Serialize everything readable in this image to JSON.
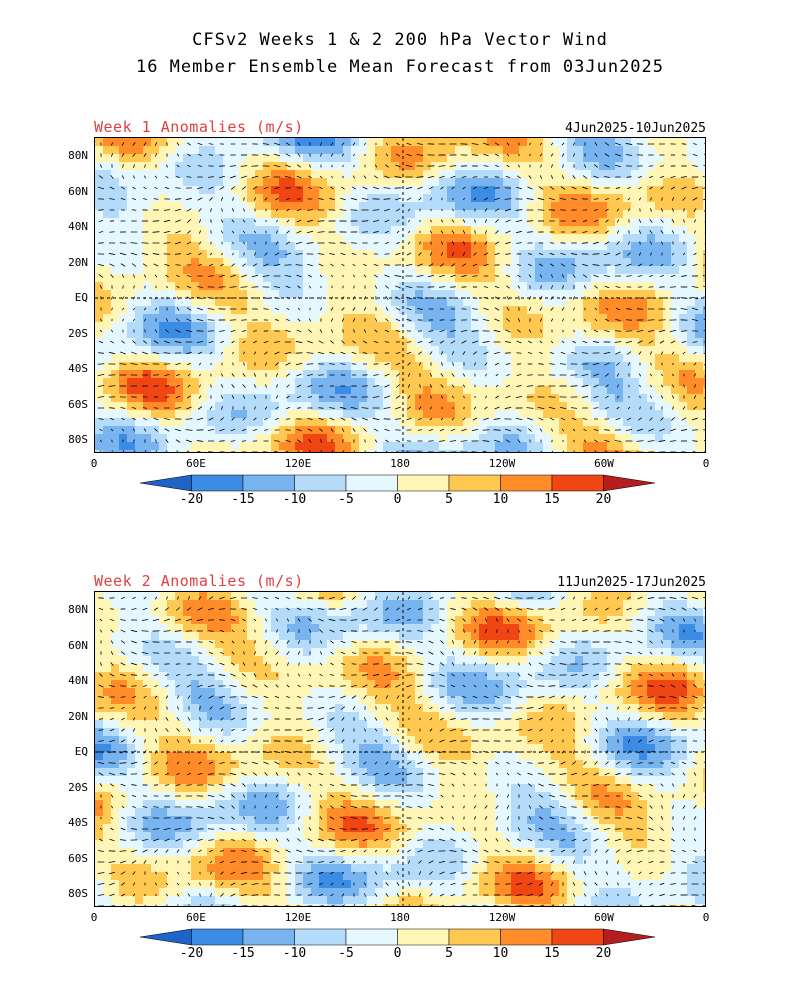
{
  "header": {
    "title_line1": "CFSv2 Weeks 1 & 2 200 hPa Vector Wind",
    "title_line2": "16 Member Ensemble Mean Forecast from 03Jun2025"
  },
  "panels": [
    {
      "title": "Week 1 Anomalies (m/s)",
      "dates": "4Jun2025-10Jun2025"
    },
    {
      "title": "Week 2 Anomalies (m/s)",
      "dates": "11Jun2025-17Jun2025"
    }
  ],
  "axes": {
    "lat_labels": [
      "80N",
      "60N",
      "40N",
      "20N",
      "EQ",
      "20S",
      "40S",
      "60S",
      "80S"
    ],
    "lon_labels": [
      "0",
      "60E",
      "120E",
      "180",
      "120W",
      "60W",
      "0"
    ]
  },
  "colorbar": {
    "labels": [
      "-20",
      "-15",
      "-10",
      "-5",
      "0",
      "5",
      "10",
      "15",
      "20"
    ],
    "colors": [
      "#1e64c8",
      "#3c8ce6",
      "#78b4f0",
      "#b4dcfa",
      "#e6f8ff",
      "#fff5b4",
      "#ffc850",
      "#ff8c28",
      "#f04614",
      "#b41e1e"
    ]
  }
}
